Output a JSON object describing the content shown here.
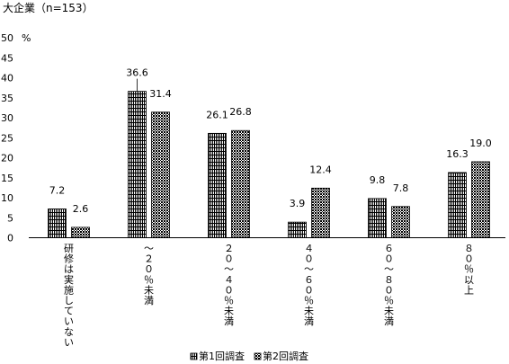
{
  "chart_data": {
    "type": "bar",
    "title": "大企業（n=153）",
    "ylabel": "%",
    "ylim": [
      0,
      50
    ],
    "yticks": [
      0,
      5,
      10,
      15,
      20,
      25,
      30,
      35,
      40,
      45,
      50
    ],
    "categories": [
      "研修は実施していない",
      "～２０％未満",
      "２０～４０％未満",
      "４０～６０％未満",
      "６０～８０％未満",
      "８０％以上"
    ],
    "series": [
      {
        "name": "第1回調査",
        "values": [
          7.2,
          36.6,
          26.1,
          3.9,
          9.8,
          16.3
        ],
        "labels": [
          "7.2",
          "36.6",
          "26.1",
          "3.9",
          "9.8",
          "16.3"
        ]
      },
      {
        "name": "第2回調査",
        "values": [
          2.6,
          31.4,
          26.8,
          12.4,
          7.8,
          19.0
        ],
        "labels": [
          "2.6",
          "31.4",
          "26.8",
          "12.4",
          "7.8",
          "19.0"
        ]
      }
    ],
    "grid": false,
    "legend_position": "bottom",
    "colors": {
      "axis": "#000000",
      "bar_outline": "#000000"
    }
  }
}
